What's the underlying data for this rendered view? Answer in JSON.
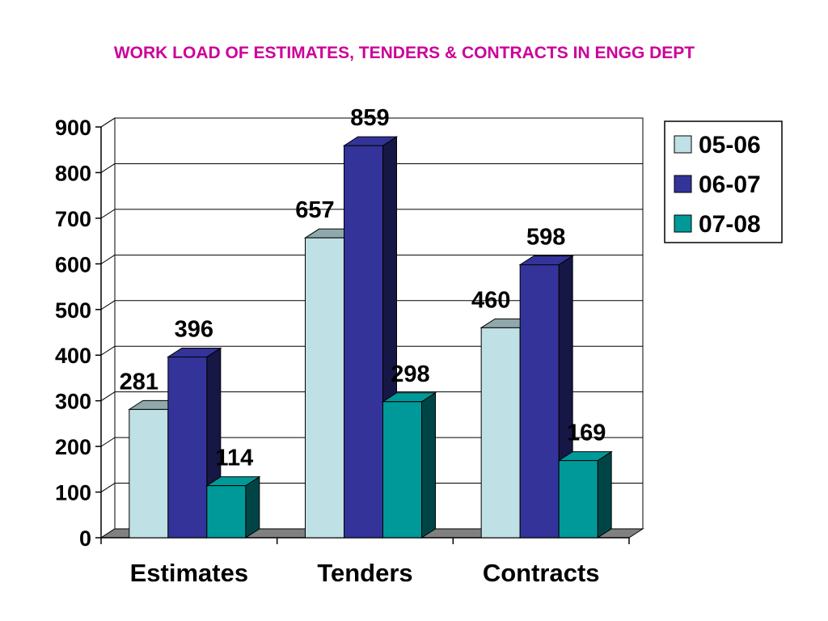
{
  "chart_data": {
    "type": "bar",
    "title": "WORK LOAD OF ESTIMATES, TENDERS & CONTRACTS IN ENGG DEPT",
    "xlabel": "",
    "ylabel": "",
    "categories": [
      "Estimates",
      "Tenders",
      "Contracts"
    ],
    "series": [
      {
        "name": "05-06",
        "values": [
          281,
          657,
          460
        ],
        "color": "#bfe0e4"
      },
      {
        "name": "06-07",
        "values": [
          396,
          859,
          598
        ],
        "color": "#333399"
      },
      {
        "name": "07-08",
        "values": [
          114,
          298,
          169
        ],
        "color": "#009999"
      }
    ],
    "ylim": [
      0,
      900
    ],
    "yticks": [
      "0",
      "100",
      "200",
      "300",
      "400",
      "500",
      "600",
      "700",
      "800",
      "900"
    ],
    "grid": true,
    "legend": "right",
    "three_d": true
  }
}
